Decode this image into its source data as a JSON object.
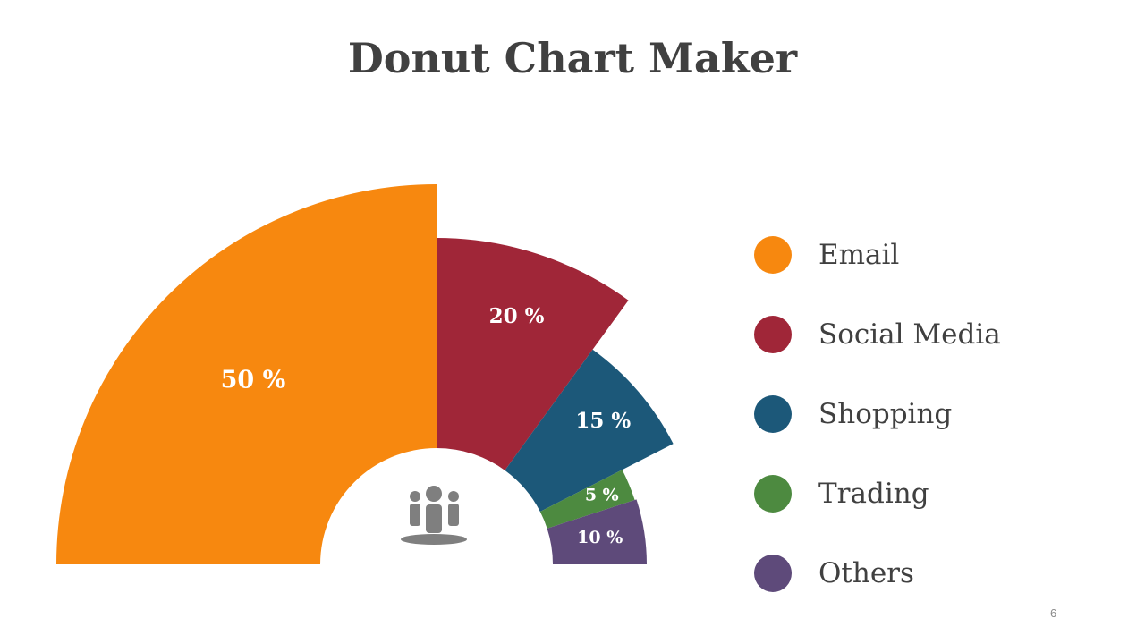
{
  "title": "Donut Chart Maker",
  "page_number": "6",
  "center_icon": "people-group-icon",
  "chart_data": {
    "type": "pie",
    "variant": "half-donut",
    "categories": [
      "Email",
      "Social Media",
      "Shopping",
      "Trading",
      "Others"
    ],
    "values": [
      50,
      20,
      15,
      5,
      10
    ],
    "labels": [
      "50 %",
      "20 %",
      "15 %",
      "5 %",
      "10 %"
    ],
    "colors": [
      "#F7880F",
      "#A02638",
      "#1C5879",
      "#4D8A40",
      "#5E4A7A"
    ],
    "legend": "right"
  }
}
